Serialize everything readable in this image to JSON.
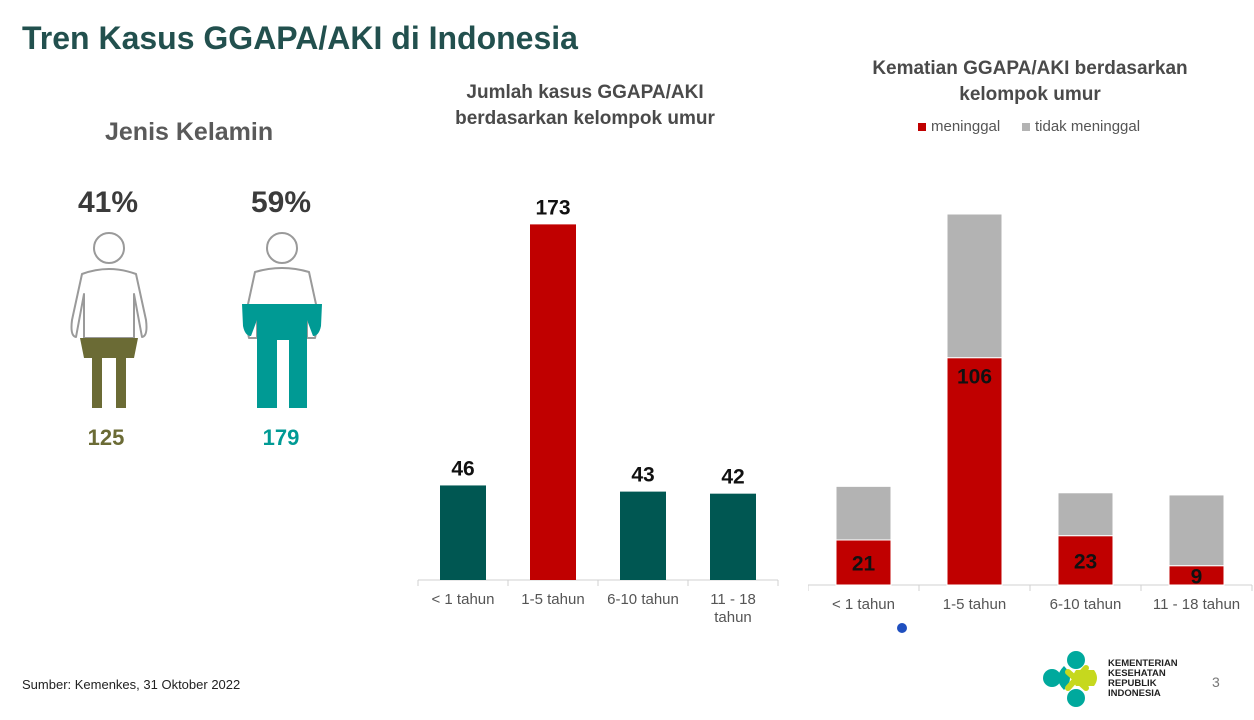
{
  "title": "Tren Kasus GGAPA/AKI di Indonesia",
  "gender": {
    "title": "Jenis Kelamin",
    "female": {
      "percent": "41%",
      "count": "125",
      "color": "#6B6B35"
    },
    "male": {
      "percent": "59%",
      "count": "179",
      "color": "#009A94"
    }
  },
  "chart_data": [
    {
      "type": "bar",
      "title": "Jumlah kasus GGAPA/AKI berdasarkan kelompok umur",
      "categories": [
        "< 1 tahun",
        "1-5 tahun",
        "6-10 tahun",
        "11 - 18 tahun"
      ],
      "values": [
        46,
        173,
        43,
        42
      ],
      "colors": [
        "#005752",
        "#C00000",
        "#005752",
        "#005752"
      ],
      "ylim": [
        0,
        180
      ]
    },
    {
      "type": "bar",
      "stacked": true,
      "title": "Kematian GGAPA/AKI berdasarkan kelompok umur",
      "categories": [
        "< 1 tahun",
        "1-5 tahun",
        "6-10 tahun",
        "11 - 18 tahun"
      ],
      "series": [
        {
          "name": "meninggal",
          "values": [
            21,
            106,
            23,
            9
          ],
          "color": "#C00000"
        },
        {
          "name": "tidak meninggal",
          "values": [
            25,
            67,
            20,
            33
          ],
          "color": "#B3B3B3"
        }
      ],
      "legend": "top"
    }
  ],
  "source": "Sumber: Kemenkes, 31 Oktober 2022",
  "page_number": "3",
  "logo": {
    "lines": [
      "KEMENTERIAN",
      "KESEHATAN",
      "REPUBLIK",
      "INDONESIA"
    ]
  }
}
